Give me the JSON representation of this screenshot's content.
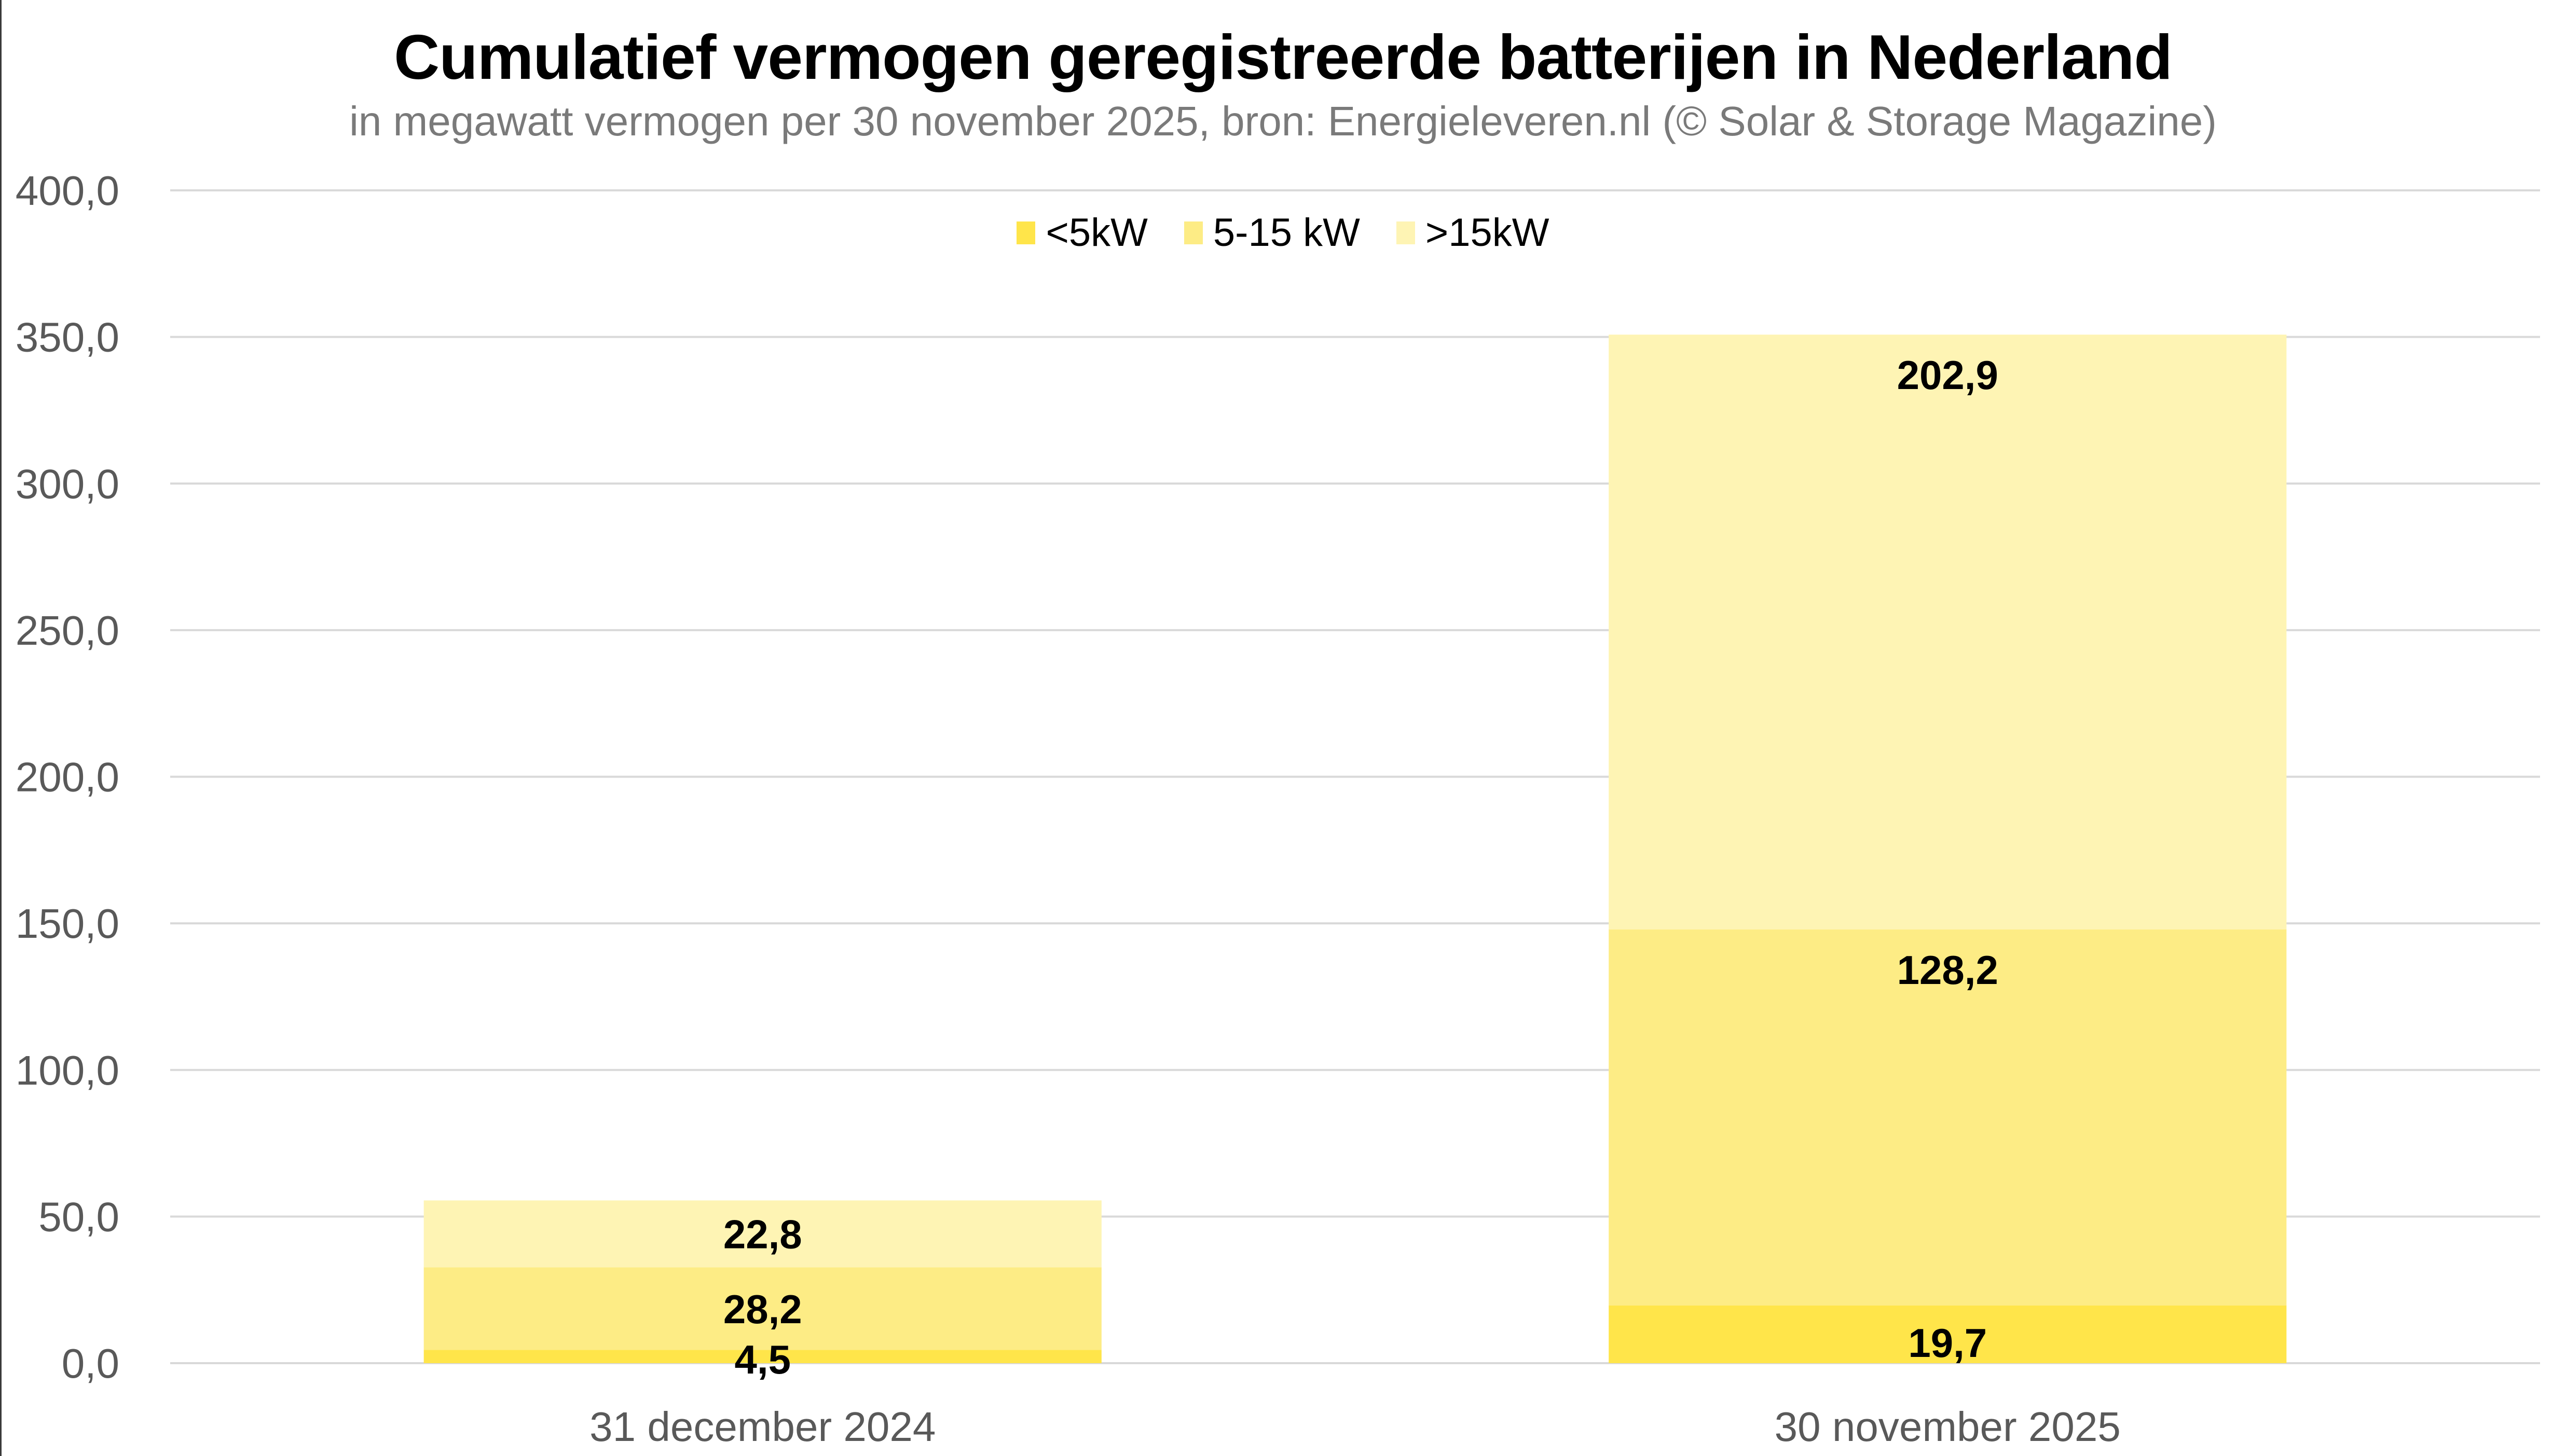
{
  "chart_data": {
    "type": "bar",
    "stacked": true,
    "title": "Cumulatief vermogen geregistreerde batterijen in Nederland",
    "subtitle": "in megawatt vermogen per 30 november 2025, bron: Energieleveren.nl (© Solar & Storage Magazine)",
    "xlabel": "",
    "ylabel": "",
    "categories": [
      "31 december 2024",
      "30 november 2025"
    ],
    "series": [
      {
        "name": "<5kW",
        "color": "#FFE54A",
        "values": [
          4.5,
          19.7
        ],
        "labels": [
          "4,5",
          "19,7"
        ]
      },
      {
        "name": "5-15 kW",
        "color": "#FDEC85",
        "values": [
          28.2,
          128.2
        ],
        "labels": [
          "28,2",
          "128,2"
        ]
      },
      {
        "name": ">15kW",
        "color": "#FEF4B4",
        "values": [
          22.8,
          202.9
        ],
        "labels": [
          "22,8",
          "202,9"
        ]
      }
    ],
    "ylim": [
      0,
      400
    ],
    "yticks": [
      0,
      50,
      100,
      150,
      200,
      250,
      300,
      350,
      400
    ],
    "ytick_labels": [
      "0,0",
      "50,0",
      "100,0",
      "150,0",
      "200,0",
      "250,0",
      "300,0",
      "350,0",
      "400,0"
    ],
    "grid": true,
    "gridline_color": "#d9d9d9",
    "legend_position": "top-center"
  }
}
